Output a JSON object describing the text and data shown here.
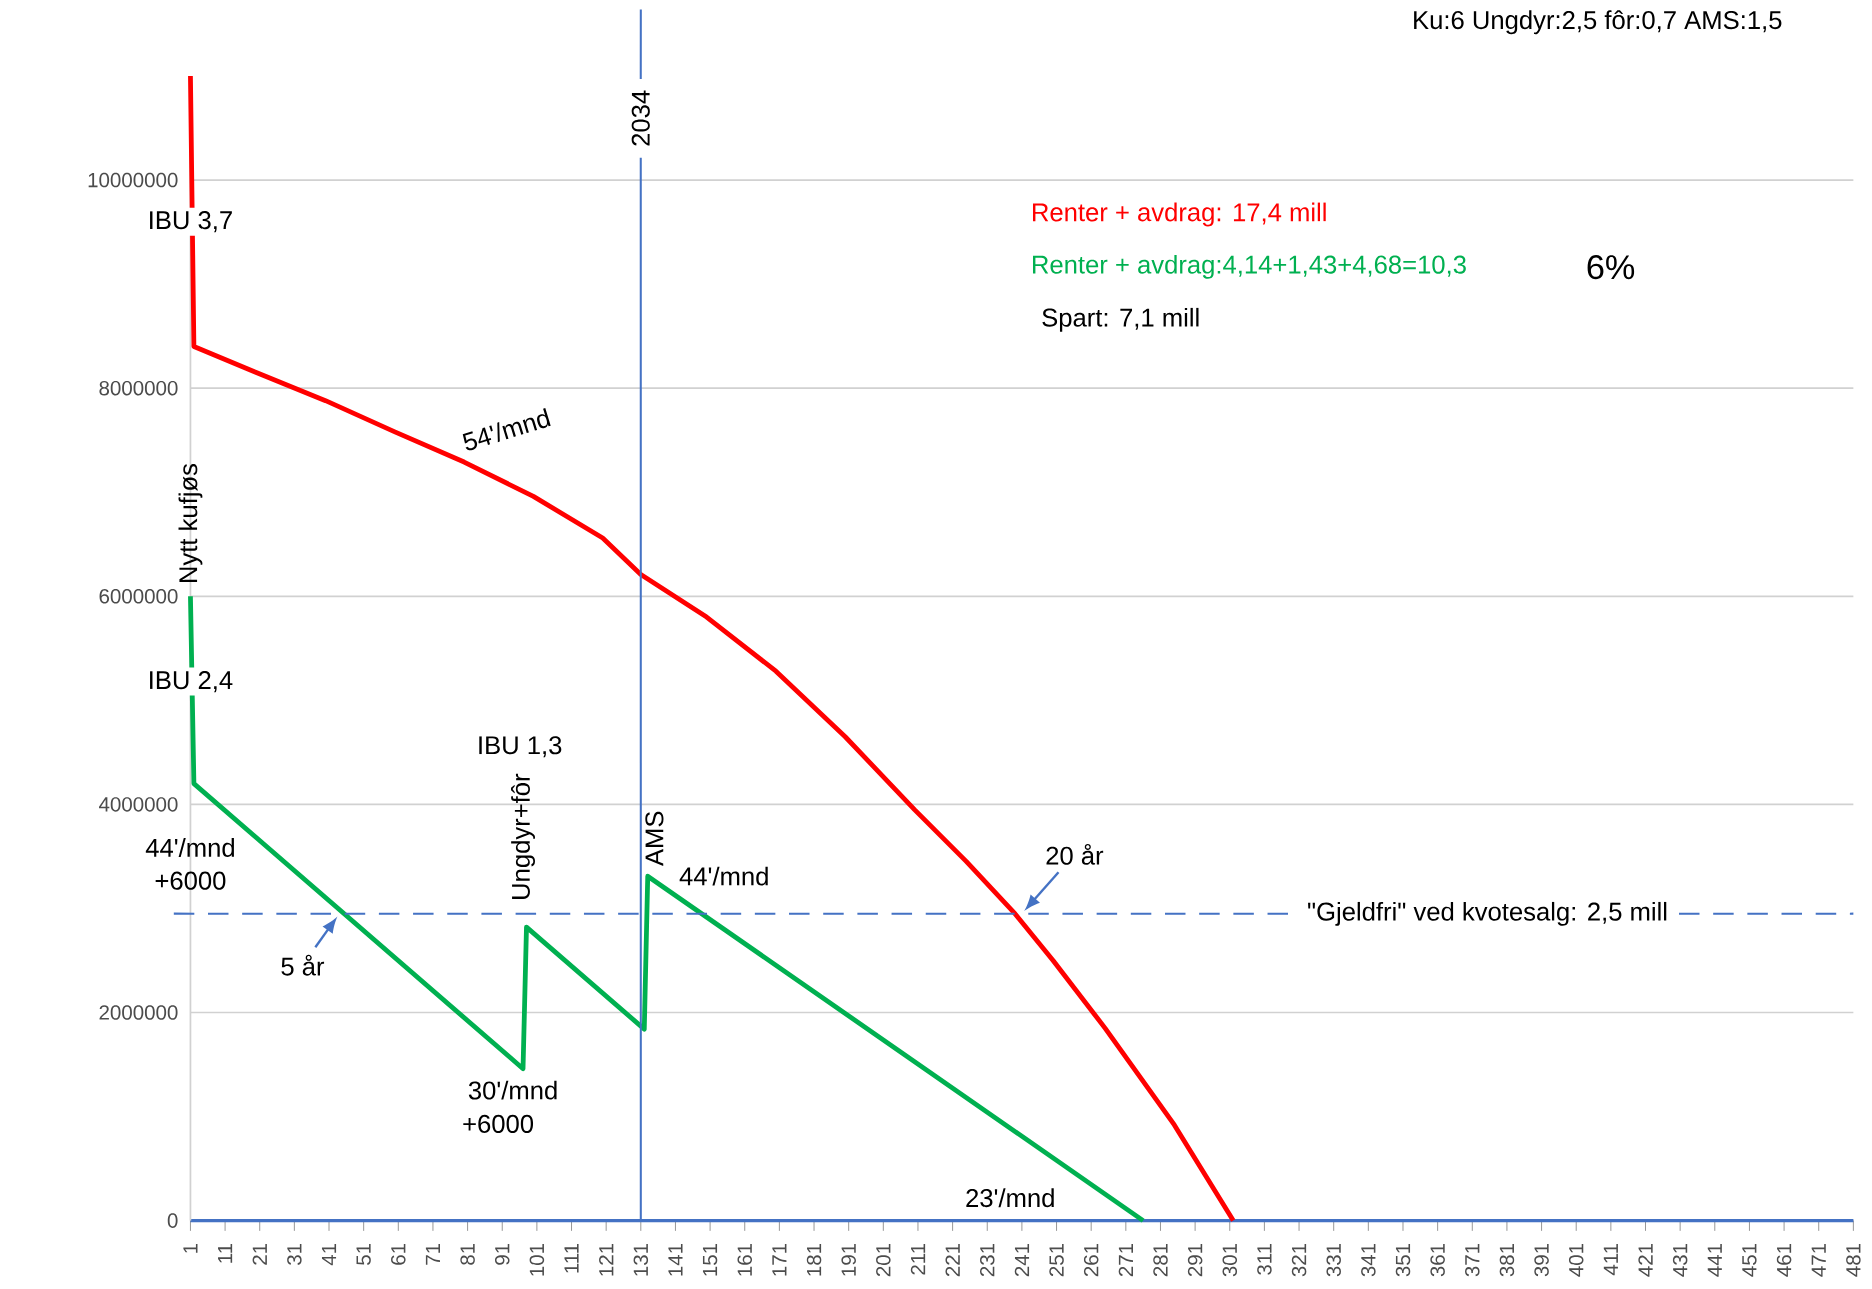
{
  "chart_data": {
    "type": "line",
    "xlim": [
      1,
      481
    ],
    "ylim": [
      0,
      11000000
    ],
    "xticks": [
      1,
      11,
      21,
      31,
      41,
      51,
      61,
      71,
      81,
      91,
      101,
      111,
      121,
      131,
      141,
      151,
      161,
      171,
      181,
      191,
      201,
      211,
      221,
      231,
      241,
      251,
      261,
      271,
      281,
      291,
      301,
      311,
      321,
      331,
      341,
      351,
      361,
      371,
      381,
      391,
      401,
      411,
      421,
      431,
      441,
      451,
      461,
      471,
      481
    ],
    "yticks": [
      0,
      2000000,
      4000000,
      6000000,
      8000000,
      10000000
    ],
    "grid": "y",
    "legend": "top right",
    "line_style": "solid",
    "series": [
      {
        "name": "Renter + avdrag: 17,4 mill",
        "color": "#ff0000",
        "x": [
          1,
          2,
          20,
          40,
          60,
          80,
          100,
          120,
          131,
          150,
          170,
          190,
          210,
          225,
          239,
          250,
          265,
          285,
          302
        ],
        "values": [
          11000000,
          8400000,
          8150000,
          7880000,
          7580000,
          7290000,
          6960000,
          6560000,
          6210000,
          5800000,
          5280000,
          4650000,
          3950000,
          3450000,
          2950000,
          2500000,
          1850000,
          920000,
          0
        ]
      },
      {
        "name": "Renter + avdrag:4,14+1,43+4,68=10,3",
        "color": "#00b050",
        "x": [
          1,
          2,
          97,
          98,
          132,
          133,
          276
        ],
        "values": [
          6000000,
          4200000,
          1460000,
          2820000,
          1840000,
          3310000,
          0
        ]
      }
    ],
    "ref_lines": [
      {
        "axis": "x",
        "value": 131,
        "color": "#4472c4",
        "line_style": "solid"
      },
      {
        "axis": "y",
        "value": 2950000,
        "color": "#4472c4",
        "line_style": "dashed"
      }
    ],
    "annotations": [
      {
        "text": "IBU 3,7",
        "x": 1,
        "y": 9600000
      },
      "Nytt kufjøs",
      {
        "text": "IBU 2,4",
        "x": 1,
        "y": 5180000
      },
      "54'/mnd",
      "44'/mnd",
      "+6000",
      {
        "text": "5 år",
        "x": 44,
        "y": 2950000
      },
      "IBU 1,3",
      "Ungdyr+fôr",
      "AMS",
      "44'/mnd",
      "30'/mnd",
      "+6000",
      "23'/mnd",
      {
        "text": "20 år",
        "x": 241,
        "y": 2950000
      },
      "Spart: 7,1 mill",
      "6%",
      "Ku:6  Ungdyr:2,5  fôr:0,7   AMS:1,5",
      "2034",
      "\"Gjeldfri\" ved kvotesalg: 2,5 mill"
    ]
  }
}
